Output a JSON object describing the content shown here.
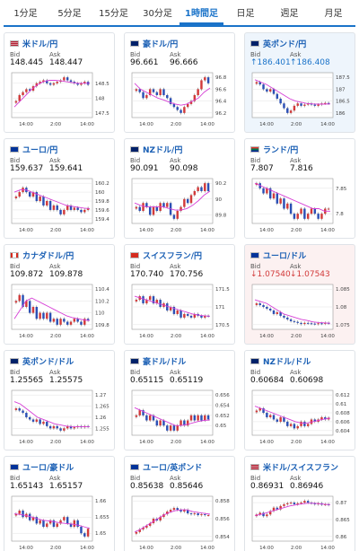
{
  "tabs": [
    "1分足",
    "5分足",
    "15分足",
    "30分足",
    "1時間足",
    "日足",
    "週足",
    "月足"
  ],
  "active_tab": 4,
  "labels": {
    "bid": "Bid",
    "ask": "Ask"
  },
  "time_labels": [
    "14:00",
    "2:00",
    "14:00"
  ],
  "cards": [
    {
      "pair": "米ドル/円",
      "bid": "148.445",
      "ask": "148.447",
      "trend": "none",
      "style": "normal",
      "flag": "us",
      "ticks": [
        "148.5",
        "148",
        "147.5"
      ],
      "prices": [
        147.9,
        148.1,
        148.2,
        148.3,
        148.25,
        148.4,
        148.5,
        148.55,
        148.6,
        148.5,
        148.45,
        148.5,
        148.55,
        148.6,
        148.7,
        148.6,
        148.55,
        148.5,
        148.45,
        148.5,
        148.55,
        148.45
      ],
      "ma": [
        147.7,
        147.9,
        148.1,
        148.3,
        148.45,
        148.55,
        148.6,
        148.6,
        148.58,
        148.55,
        148.52,
        148.5,
        148.5,
        148.5
      ]
    },
    {
      "pair": "豪ドル/円",
      "bid": "96.661",
      "ask": "96.666",
      "trend": "none",
      "style": "normal",
      "flag": "au",
      "ticks": [
        "96.8",
        "96.6",
        "96.4",
        "96.2"
      ],
      "prices": [
        96.6,
        96.55,
        96.45,
        96.5,
        96.6,
        96.55,
        96.5,
        96.6,
        96.5,
        96.45,
        96.35,
        96.3,
        96.25,
        96.2,
        96.3,
        96.35,
        96.4,
        96.5,
        96.6,
        96.75,
        96.8,
        96.7
      ],
      "ma": [
        96.7,
        96.6,
        96.55,
        96.5,
        96.45,
        96.42,
        96.38,
        96.35,
        96.33,
        96.35,
        96.4,
        96.45,
        96.55,
        96.62
      ]
    },
    {
      "pair": "英ポンド/円",
      "bid": "↑186.401",
      "ask": "↑186.408",
      "trend": "up",
      "style": "hl-blue",
      "flag": "gb",
      "ticks": [
        "187.5",
        "187",
        "186.5",
        "186"
      ],
      "prices": [
        187.3,
        187.2,
        187.0,
        186.9,
        187.0,
        186.8,
        186.6,
        186.4,
        186.2,
        186.0,
        186.1,
        186.3,
        186.4,
        186.3,
        186.35,
        186.4,
        186.35,
        186.3,
        186.35,
        186.4,
        186.42,
        186.4
      ],
      "ma": [
        187.4,
        187.3,
        187.2,
        187.05,
        186.9,
        186.75,
        186.6,
        186.5,
        186.45,
        186.4,
        186.38,
        186.37,
        186.37,
        186.38
      ]
    },
    {
      "pair": "ユーロ/円",
      "bid": "159.637",
      "ask": "159.641",
      "trend": "none",
      "style": "normal",
      "flag": "eu",
      "ticks": [
        "160.2",
        "160",
        "159.8",
        "159.6",
        "159.4"
      ],
      "prices": [
        159.9,
        160.0,
        160.1,
        160.0,
        159.9,
        160.0,
        159.8,
        159.9,
        159.7,
        159.8,
        159.6,
        159.7,
        159.6,
        159.5,
        159.6,
        159.7,
        159.6,
        159.65,
        159.6,
        159.55,
        159.6,
        159.64
      ],
      "ma": [
        160.0,
        160.05,
        160.05,
        160.0,
        159.95,
        159.9,
        159.85,
        159.8,
        159.75,
        159.7,
        159.68,
        159.66,
        159.64,
        159.63
      ]
    },
    {
      "pair": "NZドル/円",
      "bid": "90.091",
      "ask": "90.098",
      "trend": "none",
      "style": "normal",
      "flag": "nz",
      "ticks": [
        "90.2",
        "90",
        "89.8"
      ],
      "prices": [
        89.9,
        89.85,
        89.95,
        89.9,
        89.8,
        89.9,
        89.85,
        89.95,
        89.9,
        89.95,
        89.8,
        89.75,
        89.85,
        89.9,
        90.0,
        89.95,
        90.05,
        90.1,
        90.15,
        90.1,
        90.2,
        90.1
      ],
      "ma": [
        89.95,
        89.92,
        89.9,
        89.9,
        89.9,
        89.9,
        89.88,
        89.86,
        89.86,
        89.88,
        89.92,
        89.98,
        90.05,
        90.1
      ]
    },
    {
      "pair": "ランド/円",
      "bid": "7.807",
      "ask": "7.816",
      "trend": "none",
      "style": "normal",
      "flag": "za",
      "ticks": [
        "7.85",
        "7.8"
      ],
      "prices": [
        7.86,
        7.85,
        7.84,
        7.85,
        7.83,
        7.84,
        7.82,
        7.83,
        7.81,
        7.82,
        7.8,
        7.79,
        7.8,
        7.81,
        7.79,
        7.8,
        7.81,
        7.8,
        7.79,
        7.8,
        7.81,
        7.81
      ],
      "ma": [
        7.86,
        7.855,
        7.85,
        7.845,
        7.84,
        7.835,
        7.83,
        7.825,
        7.82,
        7.815,
        7.81,
        7.81,
        7.805,
        7.805
      ]
    },
    {
      "pair": "カナダドル/円",
      "bid": "109.872",
      "ask": "109.878",
      "trend": "none",
      "style": "normal",
      "flag": "ca",
      "ticks": [
        "110.4",
        "110.2",
        "110",
        "109.8"
      ],
      "prices": [
        110.2,
        110.3,
        110.1,
        110.2,
        110.0,
        110.1,
        109.9,
        110.0,
        109.9,
        110.0,
        109.85,
        109.9,
        109.8,
        109.9,
        109.85,
        109.8,
        109.85,
        109.9,
        109.85,
        109.8,
        109.9,
        109.87
      ],
      "ma": [
        109.9,
        110.05,
        110.2,
        110.25,
        110.2,
        110.15,
        110.1,
        110.05,
        110.0,
        109.95,
        109.92,
        109.9,
        109.88,
        109.87
      ]
    },
    {
      "pair": "スイスフラン/円",
      "bid": "170.740",
      "ask": "170.756",
      "trend": "none",
      "style": "normal",
      "flag": "ch",
      "ticks": [
        "171.5",
        "171",
        "170.5"
      ],
      "prices": [
        171.2,
        171.3,
        171.1,
        171.2,
        171.3,
        171.1,
        171.2,
        171.0,
        171.1,
        170.9,
        171.0,
        170.8,
        170.9,
        170.7,
        170.8,
        170.75,
        170.7,
        170.8,
        170.75,
        170.7,
        170.75,
        170.74
      ],
      "ma": [
        171.3,
        171.25,
        171.2,
        171.15,
        171.1,
        171.05,
        171.0,
        170.95,
        170.9,
        170.85,
        170.8,
        170.77,
        170.75,
        170.74
      ]
    },
    {
      "pair": "ユーロ/ドル",
      "bid": "↓1.07540",
      "ask": "↓1.07543",
      "trend": "down",
      "style": "hl-pink",
      "flag": "eu",
      "ticks": [
        "1.085",
        "1.08",
        "1.075"
      ],
      "prices": [
        1.081,
        1.0805,
        1.08,
        1.0795,
        1.079,
        1.078,
        1.0785,
        1.0775,
        1.077,
        1.0765,
        1.076,
        1.0758,
        1.0755,
        1.0752,
        1.0755,
        1.0754,
        1.0753,
        1.0752,
        1.0754,
        1.0753,
        1.0755,
        1.0754
      ],
      "ma": [
        1.082,
        1.0815,
        1.081,
        1.08,
        1.079,
        1.078,
        1.0775,
        1.077,
        1.0765,
        1.0762,
        1.0758,
        1.0756,
        1.0755,
        1.0754
      ]
    },
    {
      "pair": "英ポンド/ドル",
      "bid": "1.25565",
      "ask": "1.25575",
      "trend": "none",
      "style": "normal",
      "flag": "gb",
      "ticks": [
        "1.27",
        "1.265",
        "1.26",
        "1.255"
      ],
      "prices": [
        1.264,
        1.263,
        1.262,
        1.26,
        1.259,
        1.258,
        1.259,
        1.257,
        1.258,
        1.256,
        1.255,
        1.256,
        1.255,
        1.254,
        1.255,
        1.256,
        1.255,
        1.2555,
        1.256,
        1.2555,
        1.256,
        1.2557
      ],
      "ma": [
        1.267,
        1.266,
        1.264,
        1.262,
        1.26,
        1.259,
        1.258,
        1.257,
        1.2565,
        1.256,
        1.2558,
        1.2557,
        1.2557,
        1.2557
      ]
    },
    {
      "pair": "豪ドル/ドル",
      "bid": "0.65115",
      "ask": "0.65119",
      "trend": "none",
      "style": "normal",
      "flag": "au",
      "ticks": [
        "0.656",
        "0.654",
        "0.652",
        "0.65"
      ],
      "prices": [
        0.652,
        0.653,
        0.652,
        0.651,
        0.652,
        0.651,
        0.65,
        0.651,
        0.65,
        0.649,
        0.65,
        0.649,
        0.65,
        0.651,
        0.65,
        0.651,
        0.652,
        0.651,
        0.652,
        0.651,
        0.652,
        0.6512
      ],
      "ma": [
        0.6535,
        0.653,
        0.6525,
        0.652,
        0.6515,
        0.651,
        0.6505,
        0.65,
        0.65,
        0.6502,
        0.6505,
        0.6508,
        0.651,
        0.6511
      ]
    },
    {
      "pair": "NZドル/ドル",
      "bid": "0.60684",
      "ask": "0.60698",
      "trend": "none",
      "style": "normal",
      "flag": "nz",
      "ticks": [
        "0.612",
        "0.61",
        "0.608",
        "0.606",
        "0.604"
      ],
      "prices": [
        0.6085,
        0.609,
        0.608,
        0.607,
        0.6075,
        0.6065,
        0.606,
        0.607,
        0.606,
        0.605,
        0.6055,
        0.6045,
        0.605,
        0.606,
        0.605,
        0.6055,
        0.6065,
        0.606,
        0.6065,
        0.607,
        0.6065,
        0.6069
      ],
      "ma": [
        0.6095,
        0.609,
        0.6085,
        0.608,
        0.6075,
        0.607,
        0.6065,
        0.606,
        0.6057,
        0.6057,
        0.606,
        0.6063,
        0.6066,
        0.6068
      ]
    },
    {
      "pair": "ユーロ/豪ドル",
      "bid": "1.65143",
      "ask": "1.65157",
      "trend": "none",
      "style": "normal",
      "flag": "eu",
      "ticks": [
        "1.66",
        "1.655",
        "1.65"
      ],
      "prices": [
        1.656,
        1.657,
        1.655,
        1.656,
        1.654,
        1.655,
        1.653,
        1.654,
        1.652,
        1.653,
        1.654,
        1.652,
        1.653,
        1.654,
        1.655,
        1.653,
        1.652,
        1.654,
        1.652,
        1.65,
        1.649,
        1.6514
      ],
      "ma": [
        1.656,
        1.6558,
        1.6555,
        1.655,
        1.6545,
        1.654,
        1.6538,
        1.6535,
        1.6532,
        1.653,
        1.6528,
        1.6525,
        1.652,
        1.6515
      ]
    },
    {
      "pair": "ユーロ/英ポンド",
      "bid": "0.85638",
      "ask": "0.85646",
      "trend": "none",
      "style": "normal",
      "flag": "eu",
      "ticks": [
        "0.858",
        "0.856",
        "0.854"
      ],
      "prices": [
        0.8545,
        0.8548,
        0.855,
        0.8552,
        0.8555,
        0.856,
        0.8558,
        0.8562,
        0.8565,
        0.8568,
        0.857,
        0.8572,
        0.857,
        0.8568,
        0.857,
        0.8566,
        0.8565,
        0.8566,
        0.8564,
        0.8565,
        0.8564,
        0.8564
      ],
      "ma": [
        0.8545,
        0.8548,
        0.8552,
        0.8556,
        0.856,
        0.8564,
        0.8567,
        0.8569,
        0.857,
        0.857,
        0.8568,
        0.8567,
        0.8566,
        0.8565
      ]
    },
    {
      "pair": "米ドル/スイスフラン",
      "bid": "0.86931",
      "ask": "0.86946",
      "trend": "none",
      "style": "normal",
      "flag": "us",
      "ticks": [
        "0.87",
        "0.865",
        "0.86"
      ],
      "prices": [
        0.8665,
        0.867,
        0.866,
        0.8665,
        0.8675,
        0.8685,
        0.868,
        0.869,
        0.8695,
        0.8698,
        0.87,
        0.8695,
        0.8698,
        0.87,
        0.8705,
        0.87,
        0.8698,
        0.8695,
        0.8698,
        0.8694,
        0.8695,
        0.8693
      ],
      "ma": [
        0.8662,
        0.8665,
        0.867,
        0.8675,
        0.868,
        0.8685,
        0.869,
        0.8693,
        0.8696,
        0.8698,
        0.8698,
        0.8697,
        0.8695,
        0.8694
      ]
    }
  ]
}
